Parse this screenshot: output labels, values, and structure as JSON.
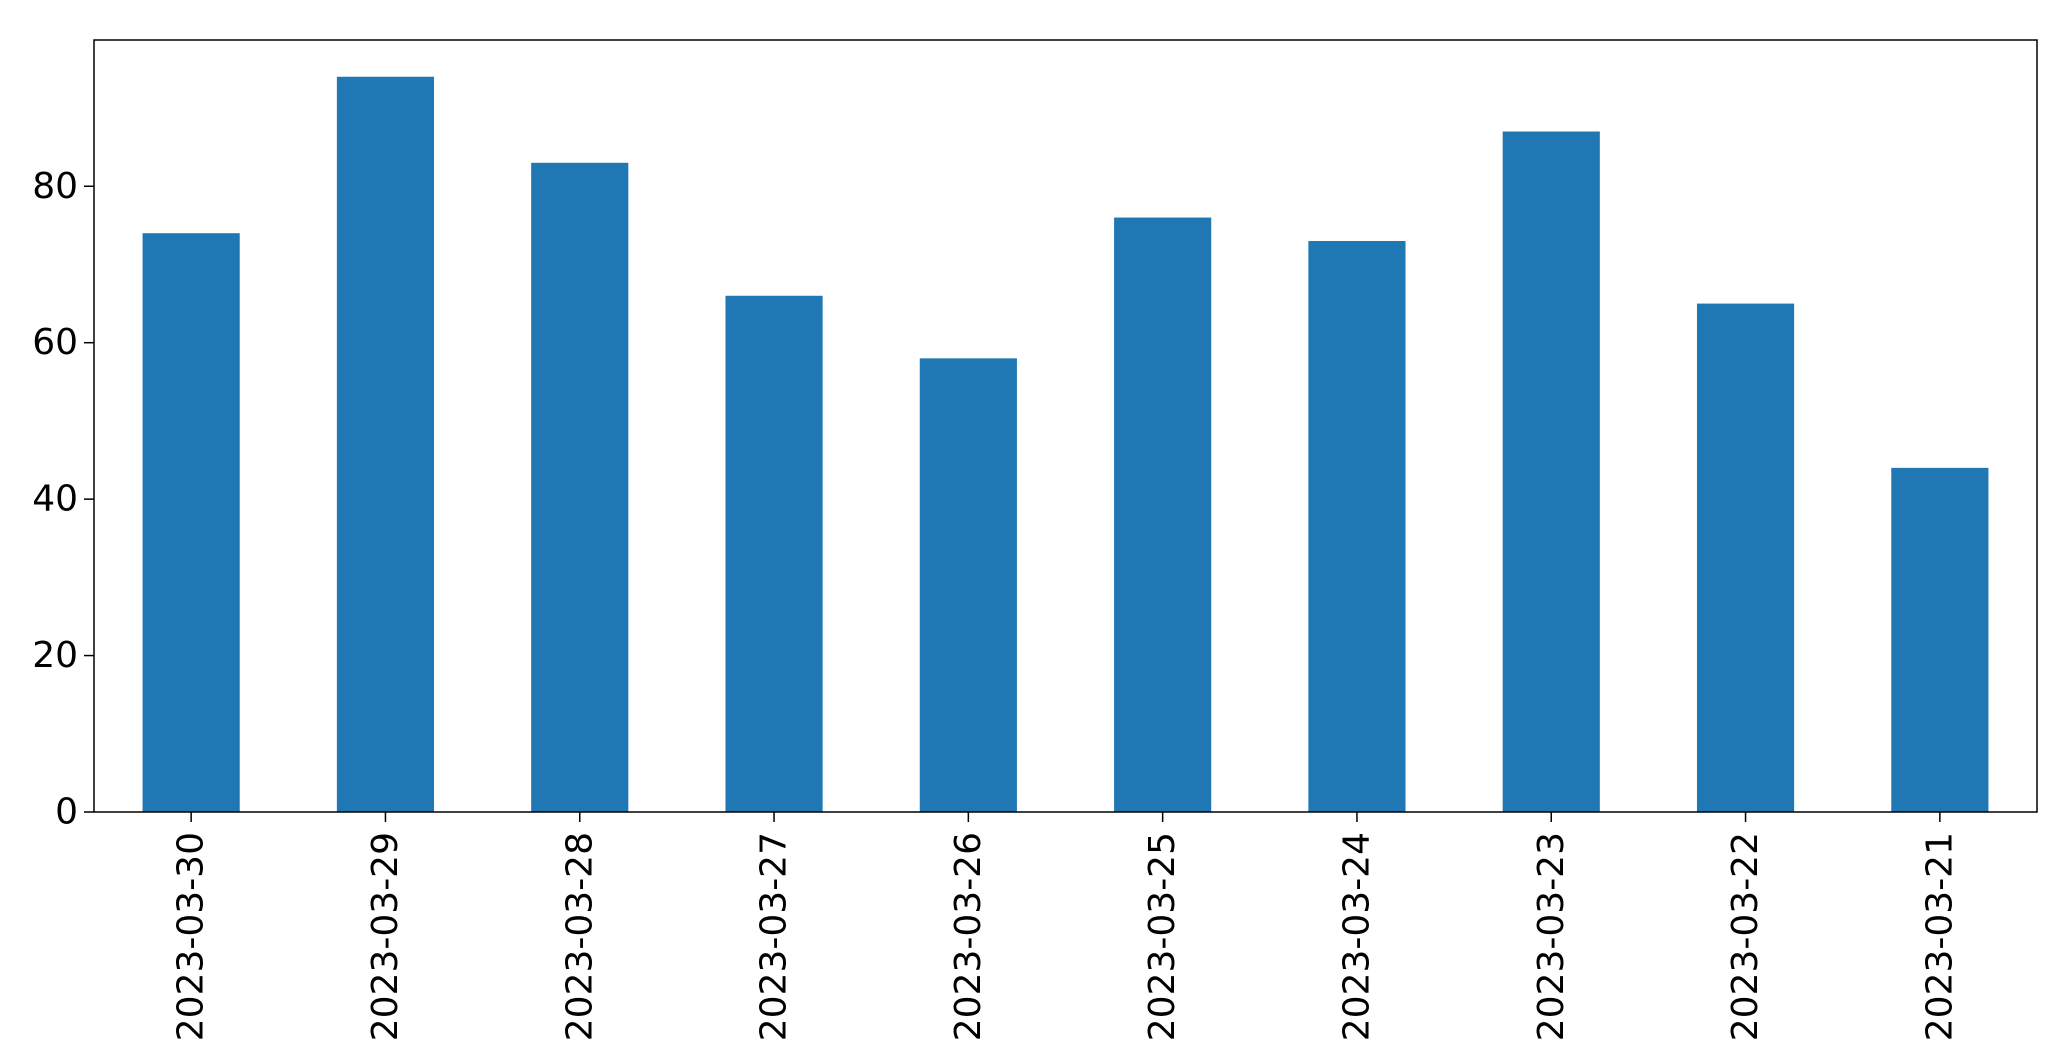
{
  "chart_data": {
    "type": "bar",
    "title": "",
    "xlabel": "",
    "ylabel": "",
    "categories": [
      "2023-03-30",
      "2023-03-29",
      "2023-03-28",
      "2023-03-27",
      "2023-03-26",
      "2023-03-25",
      "2023-03-24",
      "2023-03-23",
      "2023-03-22",
      "2023-03-21"
    ],
    "values": [
      74,
      94,
      83,
      66,
      58,
      76,
      73,
      87,
      65,
      44
    ],
    "ylim": [
      0,
      98.7
    ],
    "yticks": [
      0,
      20,
      40,
      60,
      80
    ],
    "grid": false,
    "legend": "none",
    "bar_color": "#1f77b4"
  }
}
